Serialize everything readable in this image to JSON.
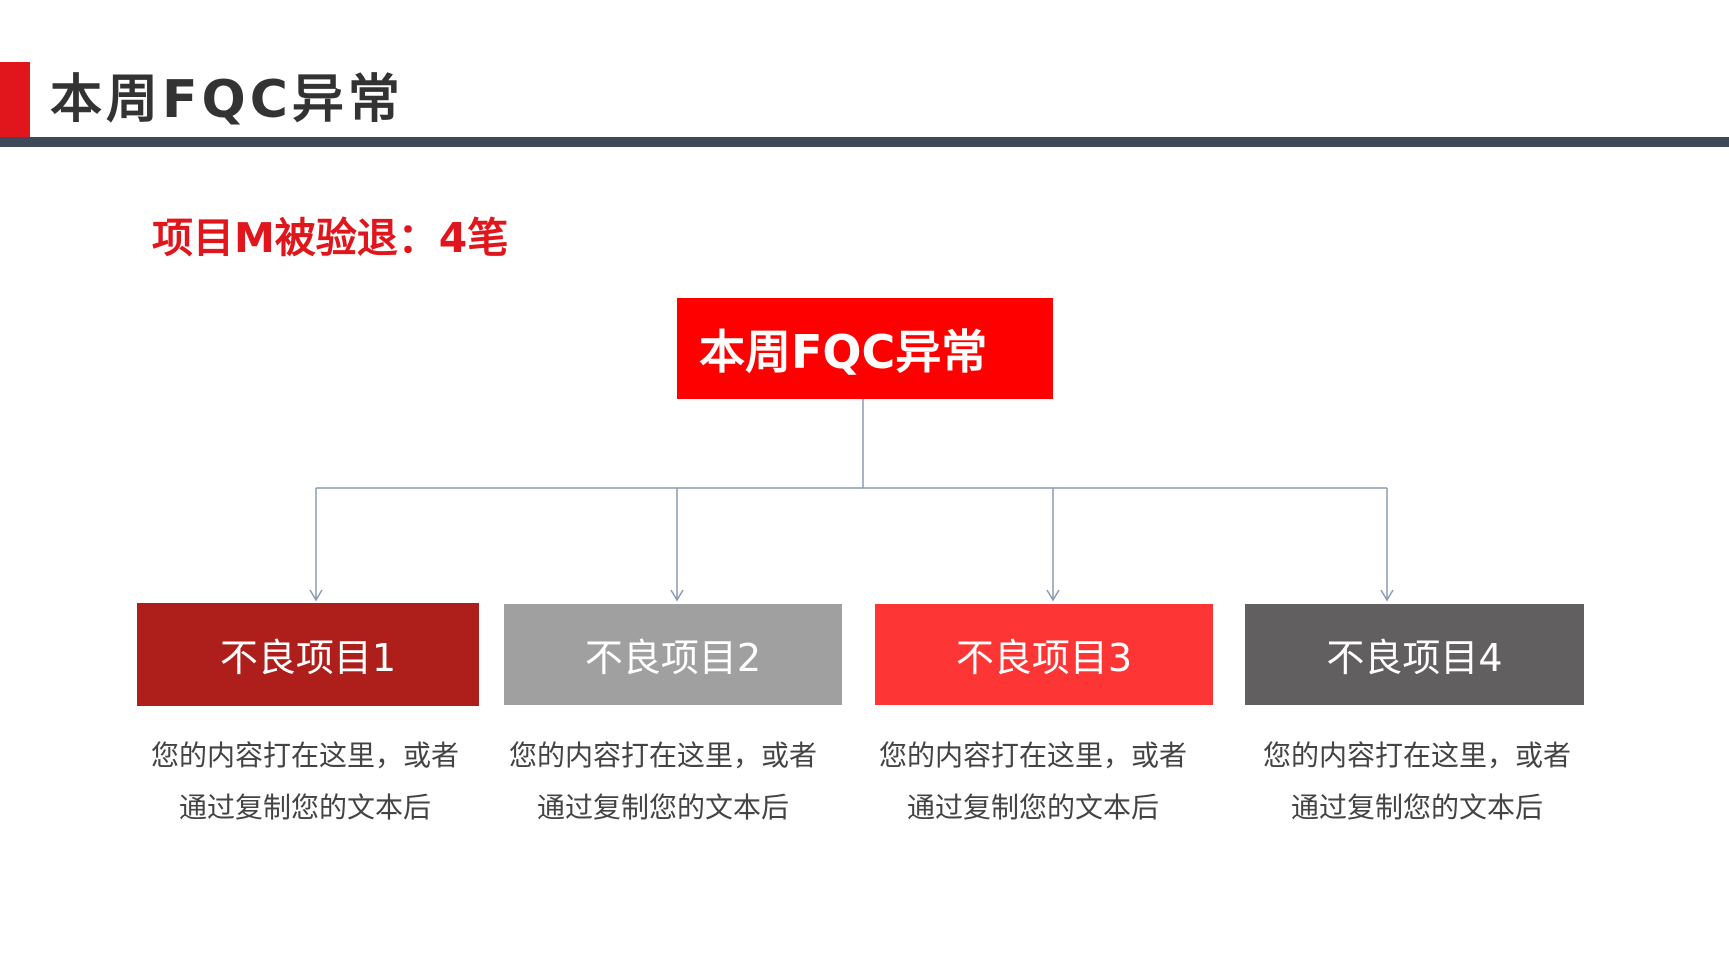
{
  "header": {
    "title": "本周FQC异常",
    "accent_color": "#e0161c",
    "rule_color": "#3d4858"
  },
  "subtitle": "项目M被验退：4笔",
  "diagram": {
    "root": {
      "label": "本周FQC异常",
      "color": "#fe0000"
    },
    "children": [
      {
        "label": "不良项目1",
        "color": "#ae1f1c",
        "desc_line1": "您的内容打在这里，或者",
        "desc_line2": "通过复制您的文本后"
      },
      {
        "label": "不良项目2",
        "color": "#a0a0a0",
        "desc_line1": "您的内容打在这里，或者",
        "desc_line2": "通过复制您的文本后"
      },
      {
        "label": "不良项目3",
        "color": "#fe3535",
        "desc_line1": "您的内容打在这里，或者",
        "desc_line2": "通过复制您的文本后"
      },
      {
        "label": "不良项目4",
        "color": "#625f61",
        "desc_line1": "您的内容打在这里，或者",
        "desc_line2": "通过复制您的文本后"
      }
    ],
    "connector_color": "#8a9ab4"
  }
}
